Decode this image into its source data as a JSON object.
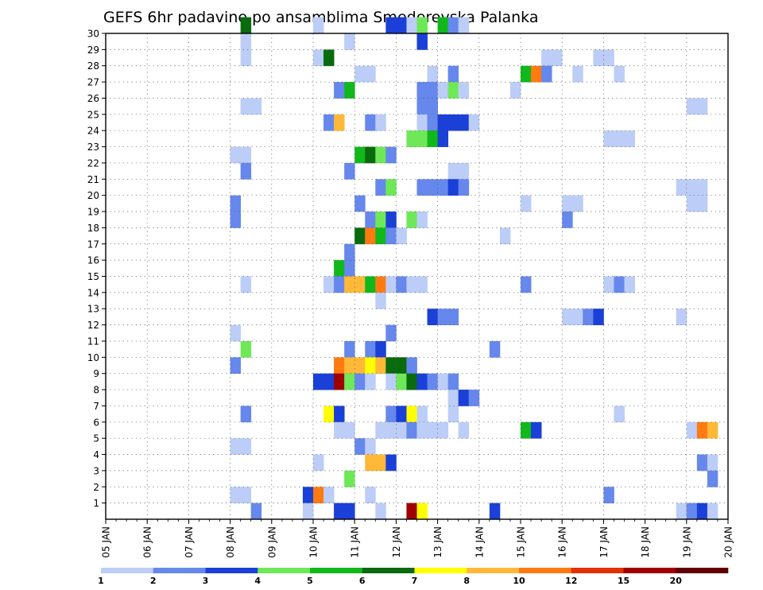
{
  "chart_data": {
    "type": "heatmap",
    "title": "GEFS 6hr padavine po ansamblima Smederevska Palanka",
    "xlabel": "",
    "ylabel": "",
    "x_ticks": [
      "05 JAN",
      "06 JAN",
      "07 JAN",
      "08 JAN",
      "09 JAN",
      "10 JAN",
      "11 JAN",
      "12 JAN",
      "13 JAN",
      "14 JAN",
      "15 JAN",
      "16 JAN",
      "17 JAN",
      "18 JAN",
      "19 JAN",
      "20 JAN"
    ],
    "xlim_days": [
      5,
      20
    ],
    "step_hours": 6,
    "y_ticks": [
      "1",
      "2",
      "3",
      "4",
      "5",
      "6",
      "7",
      "8",
      "9",
      "10",
      "11",
      "12",
      "13",
      "14",
      "15",
      "16",
      "17",
      "18",
      "19",
      "20",
      "21",
      "22",
      "23",
      "24",
      "25",
      "26",
      "27",
      "28",
      "29",
      "30"
    ],
    "ylim": [
      0,
      30
    ],
    "grid": true,
    "legend_placement": "bottom",
    "color_levels": [
      "1",
      "2",
      "3",
      "4",
      "5",
      "6",
      "7",
      "8",
      "10",
      "12",
      "15",
      "20"
    ],
    "colors": [
      "#bccdf7",
      "#6688ec",
      "#1a40d8",
      "#6ee858",
      "#10b81c",
      "#0a6a0e",
      "#ffff00",
      "#ffb838",
      "#ff7a10",
      "#e23008",
      "#a00000",
      "#600000"
    ],
    "cells": [
      [
        8.25,
        30,
        5
      ],
      [
        10.0,
        30,
        0
      ],
      [
        11.75,
        30,
        2
      ],
      [
        12.0,
        30,
        2
      ],
      [
        12.25,
        30,
        0
      ],
      [
        12.5,
        30,
        3
      ],
      [
        13.0,
        30,
        4
      ],
      [
        13.25,
        30,
        1
      ],
      [
        13.5,
        30,
        0
      ],
      [
        8.25,
        29,
        0
      ],
      [
        10.75,
        29,
        0
      ],
      [
        12.5,
        29,
        2
      ],
      [
        8.25,
        28,
        0
      ],
      [
        10.0,
        28,
        0
      ],
      [
        10.25,
        28,
        5
      ],
      [
        15.5,
        28,
        0
      ],
      [
        15.75,
        28,
        0
      ],
      [
        16.75,
        28,
        0
      ],
      [
        17.0,
        28,
        0
      ],
      [
        11.0,
        27,
        0
      ],
      [
        11.25,
        27,
        0
      ],
      [
        12.75,
        27,
        0
      ],
      [
        13.25,
        27,
        1
      ],
      [
        15.0,
        27,
        4
      ],
      [
        15.25,
        27,
        8
      ],
      [
        15.5,
        27,
        1
      ],
      [
        16.25,
        27,
        0
      ],
      [
        17.25,
        27,
        0
      ],
      [
        10.5,
        26,
        1
      ],
      [
        10.75,
        26,
        4
      ],
      [
        12.5,
        26,
        1
      ],
      [
        12.75,
        26,
        1
      ],
      [
        13.0,
        26,
        0
      ],
      [
        13.25,
        26,
        3
      ],
      [
        13.5,
        26,
        0
      ],
      [
        14.75,
        26,
        0
      ],
      [
        8.25,
        25,
        0
      ],
      [
        8.5,
        25,
        0
      ],
      [
        12.5,
        25,
        1
      ],
      [
        12.75,
        25,
        1
      ],
      [
        19.0,
        25,
        0
      ],
      [
        19.25,
        25,
        0
      ],
      [
        10.25,
        24,
        1
      ],
      [
        10.5,
        24,
        7
      ],
      [
        11.25,
        24,
        1
      ],
      [
        11.5,
        24,
        0
      ],
      [
        12.5,
        24,
        0
      ],
      [
        12.75,
        24,
        1
      ],
      [
        13.0,
        24,
        2
      ],
      [
        13.25,
        24,
        2
      ],
      [
        13.5,
        24,
        2
      ],
      [
        13.75,
        24,
        0
      ],
      [
        12.25,
        23,
        3
      ],
      [
        12.5,
        23,
        3
      ],
      [
        12.75,
        23,
        4
      ],
      [
        13.0,
        23,
        2
      ],
      [
        17.0,
        23,
        0
      ],
      [
        17.25,
        23,
        0
      ],
      [
        17.5,
        23,
        0
      ],
      [
        8.0,
        22,
        0
      ],
      [
        8.25,
        22,
        0
      ],
      [
        11.0,
        22,
        4
      ],
      [
        11.25,
        22,
        5
      ],
      [
        11.5,
        22,
        3
      ],
      [
        11.75,
        22,
        1
      ],
      [
        8.25,
        21,
        1
      ],
      [
        10.75,
        21,
        1
      ],
      [
        13.25,
        21,
        0
      ],
      [
        13.5,
        21,
        0
      ],
      [
        11.5,
        20,
        1
      ],
      [
        11.75,
        20,
        3
      ],
      [
        12.5,
        20,
        1
      ],
      [
        12.75,
        20,
        1
      ],
      [
        13.0,
        20,
        1
      ],
      [
        13.25,
        20,
        2
      ],
      [
        13.5,
        20,
        1
      ],
      [
        18.75,
        20,
        0
      ],
      [
        19.0,
        20,
        0
      ],
      [
        19.25,
        20,
        0
      ],
      [
        8.0,
        19,
        1
      ],
      [
        11.0,
        19,
        1
      ],
      [
        15.0,
        19,
        0
      ],
      [
        16.0,
        19,
        0
      ],
      [
        16.25,
        19,
        0
      ],
      [
        19.0,
        19,
        0
      ],
      [
        19.25,
        19,
        0
      ],
      [
        8.0,
        18,
        1
      ],
      [
        11.25,
        18,
        1
      ],
      [
        11.5,
        18,
        3
      ],
      [
        11.75,
        18,
        2
      ],
      [
        12.25,
        18,
        3
      ],
      [
        12.5,
        18,
        0
      ],
      [
        16.0,
        18,
        1
      ],
      [
        11.0,
        17,
        5
      ],
      [
        11.25,
        17,
        8
      ],
      [
        11.5,
        17,
        4
      ],
      [
        11.75,
        17,
        1
      ],
      [
        12.0,
        17,
        0
      ],
      [
        14.5,
        17,
        0
      ],
      [
        10.75,
        16,
        1
      ],
      [
        10.5,
        15,
        4
      ],
      [
        10.75,
        15,
        1
      ],
      [
        8.25,
        14,
        0
      ],
      [
        10.25,
        14,
        0
      ],
      [
        10.5,
        14,
        1
      ],
      [
        10.75,
        14,
        7
      ],
      [
        11.0,
        14,
        7
      ],
      [
        11.25,
        14,
        4
      ],
      [
        11.5,
        14,
        8
      ],
      [
        11.75,
        14,
        0
      ],
      [
        12.0,
        14,
        1
      ],
      [
        12.25,
        14,
        0
      ],
      [
        12.5,
        14,
        0
      ],
      [
        15.0,
        14,
        1
      ],
      [
        17.0,
        14,
        0
      ],
      [
        17.25,
        14,
        1
      ],
      [
        17.5,
        14,
        0
      ],
      [
        11.5,
        13,
        0
      ],
      [
        12.75,
        12,
        2
      ],
      [
        13.0,
        12,
        1
      ],
      [
        13.25,
        12,
        1
      ],
      [
        16.0,
        12,
        0
      ],
      [
        16.25,
        12,
        0
      ],
      [
        16.5,
        12,
        1
      ],
      [
        16.75,
        12,
        2
      ],
      [
        18.75,
        12,
        0
      ],
      [
        8.0,
        11,
        0
      ],
      [
        11.75,
        11,
        1
      ],
      [
        8.25,
        10,
        3
      ],
      [
        10.75,
        10,
        1
      ],
      [
        11.25,
        10,
        1
      ],
      [
        11.5,
        10,
        2
      ],
      [
        14.25,
        10,
        1
      ],
      [
        8.0,
        9,
        1
      ],
      [
        10.5,
        9,
        8
      ],
      [
        10.75,
        9,
        7
      ],
      [
        11.0,
        9,
        7
      ],
      [
        11.25,
        9,
        6
      ],
      [
        11.5,
        9,
        7
      ],
      [
        11.75,
        9,
        5
      ],
      [
        12.0,
        9,
        5
      ],
      [
        12.25,
        9,
        1
      ],
      [
        10.0,
        8,
        2
      ],
      [
        10.25,
        8,
        2
      ],
      [
        10.5,
        8,
        10
      ],
      [
        10.75,
        8,
        3
      ],
      [
        11.0,
        8,
        1
      ],
      [
        11.25,
        8,
        0
      ],
      [
        11.75,
        8,
        0
      ],
      [
        12.0,
        8,
        3
      ],
      [
        12.25,
        8,
        5
      ],
      [
        12.5,
        8,
        2
      ],
      [
        12.75,
        8,
        1
      ],
      [
        13.0,
        8,
        0
      ],
      [
        13.25,
        8,
        1
      ],
      [
        13.25,
        7,
        0
      ],
      [
        13.5,
        7,
        2
      ],
      [
        13.75,
        7,
        1
      ],
      [
        8.25,
        6,
        1
      ],
      [
        10.25,
        6,
        6
      ],
      [
        10.5,
        6,
        2
      ],
      [
        11.75,
        6,
        1
      ],
      [
        12.0,
        6,
        2
      ],
      [
        12.25,
        6,
        6
      ],
      [
        12.5,
        6,
        0
      ],
      [
        13.25,
        6,
        0
      ],
      [
        17.25,
        6,
        0
      ],
      [
        10.5,
        5,
        0
      ],
      [
        10.75,
        5,
        0
      ],
      [
        11.5,
        5,
        0
      ],
      [
        11.75,
        5,
        0
      ],
      [
        12.0,
        5,
        0
      ],
      [
        12.25,
        5,
        1
      ],
      [
        12.5,
        5,
        0
      ],
      [
        12.75,
        5,
        0
      ],
      [
        13.0,
        5,
        0
      ],
      [
        13.5,
        5,
        0
      ],
      [
        15.0,
        5,
        4
      ],
      [
        15.25,
        5,
        2
      ],
      [
        19.0,
        5,
        0
      ],
      [
        19.25,
        5,
        8
      ],
      [
        19.5,
        5,
        7
      ],
      [
        8.0,
        4,
        0
      ],
      [
        8.25,
        4,
        0
      ],
      [
        11.0,
        4,
        1
      ],
      [
        11.25,
        4,
        0
      ],
      [
        10.0,
        3,
        0
      ],
      [
        11.25,
        3,
        7
      ],
      [
        11.5,
        3,
        7
      ],
      [
        11.75,
        3,
        2
      ],
      [
        19.25,
        3,
        1
      ],
      [
        19.5,
        3,
        0
      ],
      [
        10.75,
        2,
        3
      ],
      [
        19.5,
        2,
        1
      ],
      [
        8.0,
        1,
        0
      ],
      [
        8.25,
        1,
        0
      ],
      [
        9.75,
        1,
        2
      ],
      [
        10.0,
        1,
        8
      ],
      [
        10.25,
        1,
        0
      ],
      [
        11.25,
        1,
        0
      ],
      [
        17.0,
        1,
        1
      ],
      [
        8.5,
        0,
        1
      ],
      [
        9.75,
        0,
        0
      ],
      [
        10.5,
        0,
        2
      ],
      [
        10.75,
        0,
        2
      ],
      [
        11.5,
        0,
        0
      ],
      [
        12.25,
        0,
        10
      ],
      [
        12.5,
        0,
        6
      ],
      [
        14.25,
        0,
        2
      ],
      [
        18.75,
        0,
        0
      ],
      [
        19.0,
        0,
        1
      ],
      [
        19.25,
        0,
        2
      ],
      [
        19.5,
        0,
        0
      ]
    ]
  }
}
